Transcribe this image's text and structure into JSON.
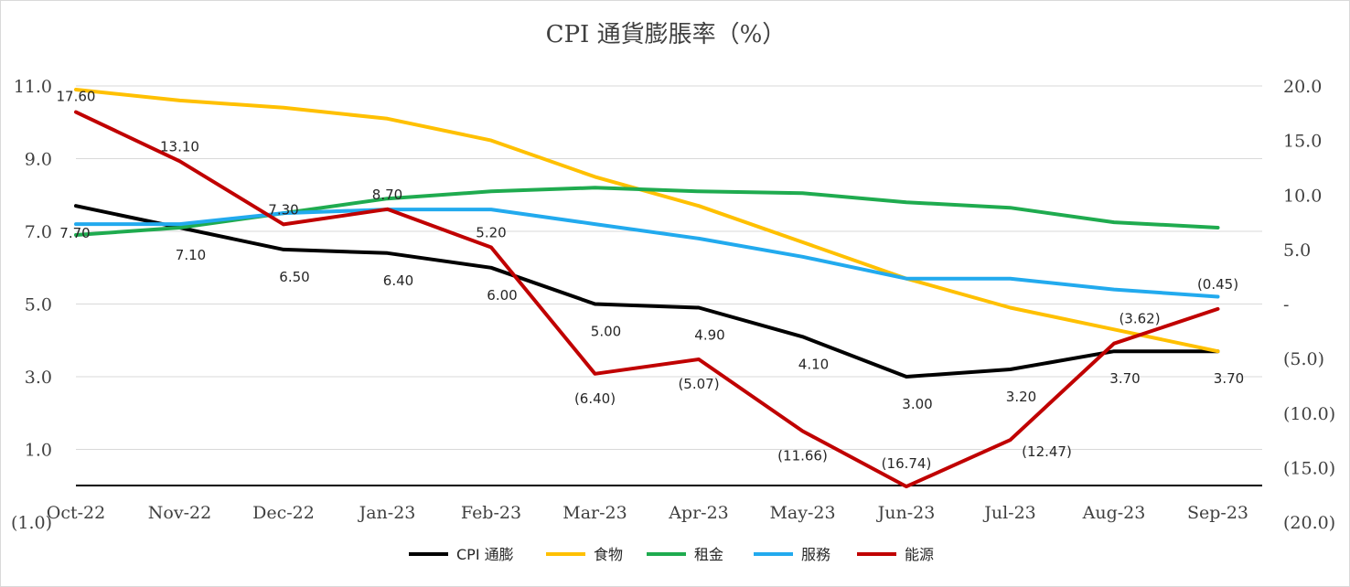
{
  "chart_data": {
    "type": "line",
    "title": "CPI 通貨膨脹率（%）",
    "categories": [
      "Oct-22",
      "Nov-22",
      "Dec-22",
      "Jan-23",
      "Feb-23",
      "Mar-23",
      "Apr-23",
      "May-23",
      "Jun-23",
      "Jul-23",
      "Aug-23",
      "Sep-23"
    ],
    "y_left": {
      "ylim": [
        -1.0,
        11.0
      ],
      "ticks": [
        "(1.0)",
        "1.0",
        "3.0",
        "5.0",
        "7.0",
        "9.0",
        "11.0"
      ]
    },
    "y_right": {
      "ylim": [
        -20.0,
        20.0
      ],
      "ticks": [
        "(20.0)",
        "(15.0)",
        "(10.0)",
        "(5.0)",
        "-",
        "5.0",
        "10.0",
        "15.0",
        "20.0"
      ]
    },
    "grid": true,
    "legend_position": "bottom",
    "series": [
      {
        "name": "CPI 通膨",
        "axis": "left",
        "color": "#000000",
        "values": [
          7.7,
          7.1,
          6.5,
          6.4,
          6.0,
          5.0,
          4.9,
          4.1,
          3.0,
          3.2,
          3.7,
          3.7
        ],
        "labels": [
          "7.70",
          "7.10",
          "6.50",
          "6.40",
          "6.00",
          "5.00",
          "4.90",
          "4.10",
          "3.00",
          "3.20",
          "3.70",
          "3.70"
        ]
      },
      {
        "name": "食物",
        "axis": "left",
        "color": "#ffc000",
        "values": [
          10.9,
          10.6,
          10.4,
          10.1,
          9.5,
          8.5,
          7.7,
          6.7,
          5.7,
          4.9,
          4.3,
          3.7
        ]
      },
      {
        "name": "租金",
        "axis": "left",
        "color": "#1fab4f",
        "values": [
          6.9,
          7.1,
          7.5,
          7.9,
          8.1,
          8.2,
          8.1,
          8.05,
          7.8,
          7.65,
          7.25,
          7.1
        ]
      },
      {
        "name": "服務",
        "axis": "left",
        "color": "#22aaee",
        "values": [
          7.2,
          7.2,
          7.5,
          7.6,
          7.6,
          7.2,
          6.8,
          6.3,
          5.7,
          5.7,
          5.4,
          5.2
        ]
      },
      {
        "name": "能源",
        "axis": "right",
        "color": "#c00000",
        "values": [
          17.6,
          13.1,
          7.3,
          8.7,
          5.2,
          -6.4,
          -5.07,
          -11.66,
          -16.74,
          -12.47,
          -3.62,
          -0.45
        ],
        "labels": [
          "17.60",
          "13.10",
          "7.30",
          "8.70",
          "5.20",
          "(6.40)",
          "(5.07)",
          "(11.66)",
          "(16.74)",
          "(12.47)",
          "(3.62)",
          "(0.45)"
        ]
      }
    ]
  }
}
